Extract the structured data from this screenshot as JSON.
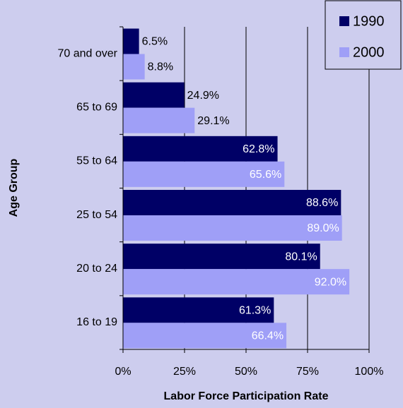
{
  "chart_data": {
    "type": "bar",
    "orientation": "horizontal",
    "categories": [
      "70 and over",
      "65 to 69",
      "55 to 64",
      "25 to 54",
      "20 to 24",
      "16 to 19"
    ],
    "series": [
      {
        "name": "1990",
        "color": "#000066",
        "values": [
          6.5,
          24.9,
          62.8,
          88.6,
          80.1,
          61.3
        ],
        "value_labels": [
          "6.5%",
          "24.9%",
          "62.8%",
          "88.6%",
          "80.1%",
          "61.3%"
        ]
      },
      {
        "name": "2000",
        "color": "#9f9ff7",
        "values": [
          8.8,
          29.1,
          65.6,
          89.0,
          92.0,
          66.4
        ],
        "value_labels": [
          "8.8%",
          "29.1%",
          "65.6%",
          "89.0%",
          "92.0%",
          "66.4%"
        ]
      }
    ],
    "xlim": [
      0,
      100
    ],
    "xticks": [
      {
        "value": 0,
        "label": "0%"
      },
      {
        "value": 25,
        "label": "25%"
      },
      {
        "value": 50,
        "label": "50%"
      },
      {
        "value": 75,
        "label": "75%"
      },
      {
        "value": 100,
        "label": "100%"
      }
    ],
    "x_label": "Labor Force Participation Rate",
    "y_label": "Age Group",
    "grid": true,
    "legend": "top-right"
  }
}
